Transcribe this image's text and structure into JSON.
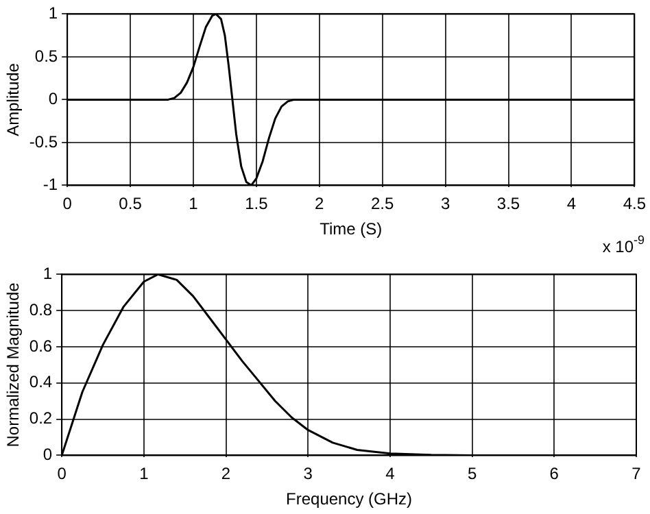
{
  "chart_data": [
    {
      "type": "line",
      "xlabel": "Time (S)",
      "ylabel": "Amplitude",
      "annotations": [
        "x 10$^{-9}$"
      ],
      "xlim": [
        0,
        4.5
      ],
      "xticks": [
        0,
        0.5,
        1,
        1.5,
        2,
        2.5,
        3,
        3.5,
        4,
        4.5
      ],
      "ylim": [
        -1,
        1
      ],
      "yticks": [
        -1,
        -0.5,
        0,
        0.5,
        1
      ],
      "grid": true,
      "marker": "none",
      "line_style": "solid",
      "series": [
        {
          "color": "#000000",
          "x": [
            0,
            0.8,
            0.85,
            0.9,
            0.95,
            1.0,
            1.05,
            1.1,
            1.15,
            1.18,
            1.22,
            1.25,
            1.28,
            1.31,
            1.34,
            1.38,
            1.42,
            1.46,
            1.5,
            1.55,
            1.6,
            1.65,
            1.7,
            1.75,
            1.8,
            4.5
          ],
          "values": [
            0,
            0,
            0.02,
            0.08,
            0.2,
            0.38,
            0.62,
            0.85,
            0.98,
            1,
            0.94,
            0.75,
            0.4,
            0,
            -0.4,
            -0.78,
            -0.96,
            -1,
            -0.92,
            -0.72,
            -0.45,
            -0.22,
            -0.08,
            -0.02,
            0,
            0
          ]
        }
      ]
    },
    {
      "type": "line",
      "xlabel": "Frequency (GHz)",
      "ylabel": "Normalized Magnitude",
      "xlim": [
        0,
        7
      ],
      "xticks": [
        0,
        1,
        2,
        3,
        4,
        5,
        6,
        7
      ],
      "ylim": [
        0,
        1
      ],
      "yticks": [
        0,
        0.2,
        0.4,
        0.6,
        0.8,
        1
      ],
      "grid": true,
      "marker": "none",
      "line_style": "solid",
      "series": [
        {
          "color": "#000000",
          "x": [
            0,
            0.25,
            0.5,
            0.75,
            1.0,
            1.17,
            1.4,
            1.6,
            1.8,
            2.0,
            2.2,
            2.4,
            2.6,
            2.8,
            3.0,
            3.3,
            3.6,
            4.0,
            4.5,
            5,
            7
          ],
          "values": [
            0,
            0.35,
            0.61,
            0.82,
            0.96,
            1,
            0.97,
            0.88,
            0.76,
            0.64,
            0.52,
            0.41,
            0.3,
            0.21,
            0.14,
            0.07,
            0.03,
            0.01,
            0.002,
            0,
            0
          ]
        }
      ]
    }
  ]
}
